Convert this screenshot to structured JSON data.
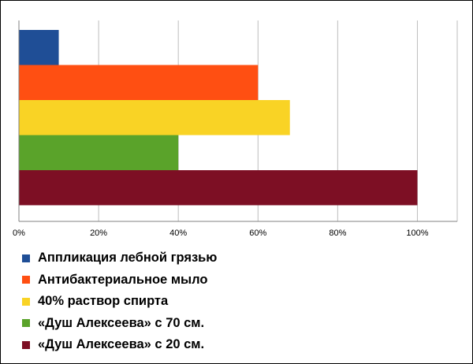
{
  "chart_data": {
    "type": "bar",
    "orientation": "horizontal",
    "title": "",
    "xlabel": "",
    "ylabel": "",
    "xlim": [
      0,
      110
    ],
    "ticks": [
      0,
      20,
      40,
      60,
      80,
      100
    ],
    "tick_labels": [
      "0%",
      "20%",
      "40%",
      "60%",
      "80%",
      "100%"
    ],
    "grid": true,
    "legend_position": "bottom",
    "series": [
      {
        "name": "Аппликация лебной грязью",
        "value": 10,
        "color": "#1f4e96"
      },
      {
        "name": "Антибактериальное мыло",
        "value": 60,
        "color": "#ff4f12"
      },
      {
        "name": "40% раствор спирта",
        "value": 68,
        "color": "#f9d325"
      },
      {
        "name": "«Душ Алексеева» с 70 см.",
        "value": 40,
        "color": "#5aa32a"
      },
      {
        "name": "«Душ Алексеева» с 20 см.",
        "value": 100,
        "color": "#7d0f24"
      }
    ]
  }
}
